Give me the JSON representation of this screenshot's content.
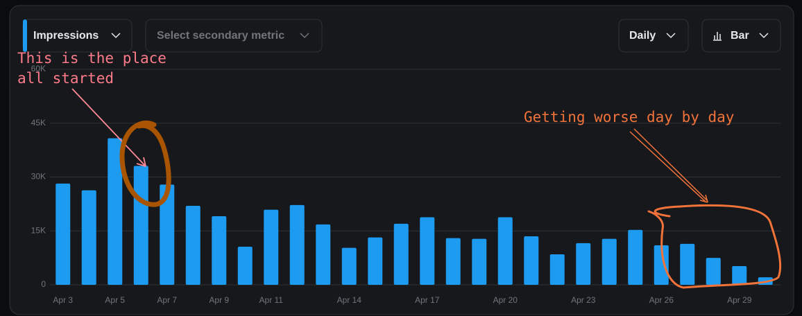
{
  "controls": {
    "primary_metric": "Impressions",
    "secondary_metric": "Select secondary metric",
    "interval": "Daily",
    "chart_style": "Bar"
  },
  "chart_data": {
    "type": "bar",
    "categories": [
      "Apr 3",
      null,
      "Apr 5",
      null,
      "Apr 7",
      null,
      "Apr 9",
      null,
      "Apr 11",
      null,
      null,
      "Apr 14",
      null,
      null,
      "Apr 17",
      null,
      null,
      "Apr 20",
      null,
      null,
      "Apr 23",
      null,
      null,
      "Apr 26",
      null,
      null,
      "Apr 29",
      null
    ],
    "series": [
      {
        "name": "Impressions",
        "color": "#1d9bf0",
        "values": [
          28200,
          26300,
          40800,
          33100,
          27900,
          22000,
          19100,
          10600,
          20900,
          22200,
          16800,
          10300,
          13200,
          17000,
          18800,
          13000,
          12800,
          18800,
          13500,
          8500,
          11600,
          12800,
          15300,
          11000,
          11400,
          7500,
          5200,
          2100
        ]
      }
    ],
    "ylim": [
      0,
      60000
    ],
    "yticks": [
      0,
      {
        "value": 15000,
        "label": "15K"
      },
      {
        "value": 30000,
        "label": "30K"
      },
      {
        "value": 45000,
        "label": "45K"
      },
      {
        "value": 60000,
        "label": "60K"
      }
    ],
    "grid": true,
    "annotations": [
      "This is the place",
      "all started",
      "Getting worse day by day"
    ]
  }
}
